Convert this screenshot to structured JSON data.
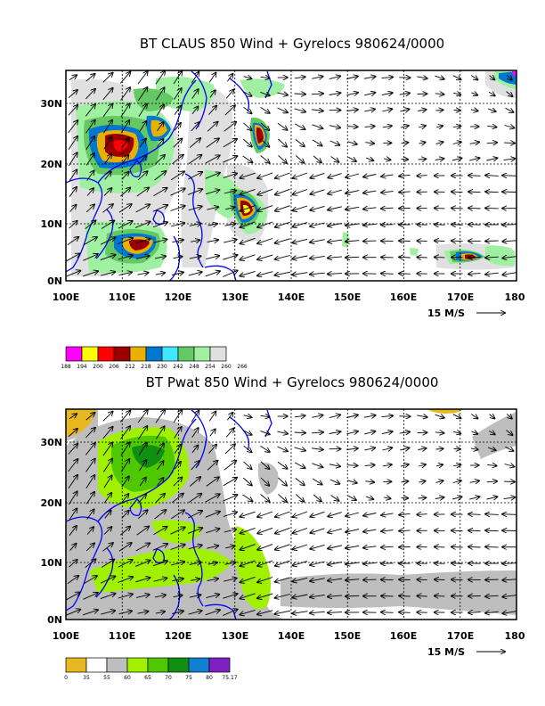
{
  "panels": [
    {
      "id": "claus",
      "title": "BT CLAUS 850 Wind + Gyrelocs 980624/0000",
      "x_ticks": [
        "100E",
        "110E",
        "120E",
        "130E",
        "140E",
        "150E",
        "160E",
        "170E",
        "180"
      ],
      "y_ticks": [
        "0N",
        "10N",
        "20N",
        "30N"
      ],
      "scale_label": "15 M/S",
      "colorbar_labels": [
        "188",
        "194",
        "200",
        "206",
        "212",
        "218",
        "230",
        "242",
        "248",
        "254",
        "260",
        "266"
      ],
      "colorbar_colors": [
        "#ff00ff",
        "#ffff00",
        "#ff0000",
        "#9a0000",
        "#e8b000",
        "#0078d0",
        "#40e8ff",
        "#64c864",
        "#9ff0a0",
        "#e0e0e0"
      ],
      "region_colors": {
        "high": "#9a0000",
        "mid": "#e8b000",
        "low": "#0078d0",
        "edge": "#64c864",
        "fringe": "#9ff0a0",
        "haze": "#e0e0e0"
      }
    },
    {
      "id": "pwat",
      "title": "BT Pwat 850 Wind + Gyrelocs 980624/0000",
      "x_ticks": [
        "100E",
        "110E",
        "120E",
        "130E",
        "140E",
        "150E",
        "160E",
        "170E",
        "180"
      ],
      "y_ticks": [
        "0N",
        "10N",
        "20N",
        "30N"
      ],
      "scale_label": "15 M/S",
      "colorbar_labels": [
        "0",
        "35",
        "55",
        "60",
        "65",
        "70",
        "75",
        "80",
        "75.17"
      ],
      "colorbar_colors": [
        "#e8b820",
        "#ffffff",
        "#bebebe",
        "#a0f000",
        "#50c800",
        "#109010",
        "#1080d0",
        "#8020c0"
      ],
      "region_colors": {
        "gray": "#bebebe",
        "lime": "#a0f000",
        "green": "#50c800",
        "dark": "#109010",
        "gold": "#e8b820"
      }
    }
  ]
}
